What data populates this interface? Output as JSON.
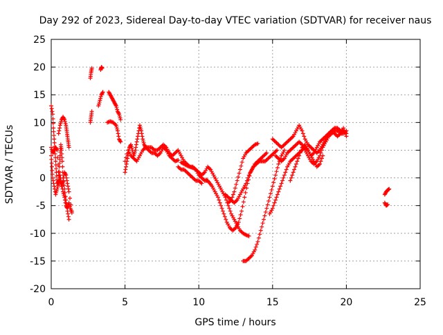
{
  "chart_data": {
    "type": "scatter",
    "title": "Day 292 of 2023, Sidereal Day-to-day VTEC variation (SDTVAR) for receiver naus",
    "xlabel": "GPS time / hours",
    "ylabel": "SDTVAR / TECUs",
    "xlim": [
      0,
      25
    ],
    "ylim": [
      -20,
      25
    ],
    "xticks": [
      "0",
      "5",
      "10",
      "15",
      "20",
      "25"
    ],
    "yticks": [
      "-20",
      "-15",
      "-10",
      "-5",
      "0",
      "5",
      "10",
      "15",
      "20",
      "25"
    ],
    "grid": true,
    "marker": "+",
    "series_color": "#ff0000",
    "segments": [
      [
        [
          0.0,
          13.0
        ],
        [
          0.1,
          11.5
        ],
        [
          0.15,
          9.0
        ],
        [
          0.2,
          7.0
        ],
        [
          0.25,
          5.0
        ],
        [
          0.3,
          3.0
        ],
        [
          0.35,
          1.0
        ],
        [
          0.4,
          -1.0
        ],
        [
          0.5,
          -0.5
        ],
        [
          0.55,
          2.0
        ],
        [
          0.6,
          4.0
        ],
        [
          0.65,
          6.0
        ],
        [
          0.7,
          5.0
        ],
        [
          0.75,
          3.0
        ],
        [
          0.8,
          0.0
        ],
        [
          0.9,
          -2.0
        ],
        [
          1.0,
          -4.0
        ],
        [
          1.1,
          -6.0
        ],
        [
          1.2,
          -7.5
        ]
      ],
      [
        [
          0.0,
          4.0
        ],
        [
          0.05,
          2.0
        ],
        [
          0.1,
          0.0
        ],
        [
          0.2,
          -1.5
        ],
        [
          0.3,
          -3.0
        ],
        [
          0.4,
          -2.0
        ],
        [
          0.5,
          -1.0
        ],
        [
          0.6,
          0.5
        ],
        [
          0.7,
          -1.0
        ],
        [
          0.8,
          -2.5
        ],
        [
          0.9,
          -3.5
        ],
        [
          1.0,
          -5.0
        ],
        [
          1.1,
          -5.5
        ],
        [
          1.2,
          -4.5
        ],
        [
          1.3,
          -5.5
        ],
        [
          1.4,
          -6.3
        ]
      ],
      [
        [
          0.5,
          8.0
        ],
        [
          0.6,
          9.5
        ],
        [
          0.7,
          10.5
        ],
        [
          0.8,
          11.0
        ],
        [
          0.9,
          10.5
        ],
        [
          1.0,
          9.5
        ],
        [
          1.05,
          8.5
        ],
        [
          1.1,
          7.5
        ],
        [
          1.15,
          6.5
        ],
        [
          1.2,
          5.5
        ]
      ],
      [
        [
          0.0,
          5.5
        ],
        [
          0.1,
          4.5
        ],
        [
          0.2,
          5.0
        ],
        [
          0.3,
          5.5
        ],
        [
          0.4,
          5.0
        ],
        [
          0.5,
          1.0
        ],
        [
          0.6,
          -0.5
        ],
        [
          0.7,
          -1.5
        ],
        [
          0.8,
          -0.5
        ],
        [
          0.9,
          1.0
        ],
        [
          1.0,
          0.5
        ],
        [
          1.1,
          -1.0
        ],
        [
          1.2,
          -2.5
        ],
        [
          1.4,
          -6.0
        ]
      ],
      [
        [
          2.65,
          18.0
        ],
        [
          2.7,
          19.0
        ],
        [
          2.75,
          19.8
        ]
      ],
      [
        [
          2.65,
          10.0
        ],
        [
          2.7,
          11.0
        ],
        [
          2.75,
          12.0
        ]
      ],
      [
        [
          3.35,
          19.5
        ],
        [
          3.4,
          20.0
        ],
        [
          3.45,
          19.8
        ]
      ],
      [
        [
          3.2,
          13.0
        ],
        [
          3.3,
          14.0
        ],
        [
          3.4,
          15.0
        ],
        [
          3.5,
          15.5
        ]
      ],
      [
        [
          3.8,
          10.0
        ],
        [
          4.0,
          10.2
        ],
        [
          4.2,
          10.0
        ],
        [
          4.4,
          9.5
        ],
        [
          4.5,
          8.5
        ],
        [
          4.6,
          7.0
        ],
        [
          4.7,
          6.5
        ]
      ],
      [
        [
          3.9,
          15.5
        ],
        [
          4.0,
          15.0
        ],
        [
          4.1,
          14.5
        ],
        [
          4.2,
          14.0
        ],
        [
          4.3,
          13.5
        ],
        [
          4.4,
          13.0
        ],
        [
          4.5,
          12.0
        ],
        [
          4.6,
          11.5
        ],
        [
          4.7,
          10.5
        ]
      ],
      [
        [
          5.0,
          1.0
        ],
        [
          5.1,
          2.5
        ],
        [
          5.2,
          4.0
        ],
        [
          5.3,
          5.5
        ],
        [
          5.4,
          6.0
        ],
        [
          5.5,
          5.0
        ],
        [
          5.6,
          4.0
        ],
        [
          5.7,
          5.0
        ],
        [
          5.8,
          6.5
        ],
        [
          5.9,
          8.0
        ],
        [
          6.0,
          9.5
        ],
        [
          6.1,
          8.5
        ],
        [
          6.2,
          7.0
        ],
        [
          6.3,
          6.0
        ],
        [
          6.4,
          5.5
        ],
        [
          6.6,
          5.0
        ],
        [
          6.8,
          4.5
        ],
        [
          7.0,
          4.5
        ],
        [
          7.2,
          4.0
        ],
        [
          7.4,
          4.5
        ],
        [
          7.6,
          5.5
        ],
        [
          7.8,
          5.0
        ],
        [
          8.0,
          4.0
        ],
        [
          8.2,
          3.5
        ],
        [
          8.4,
          3.0
        ],
        [
          8.6,
          3.2
        ]
      ],
      [
        [
          5.0,
          3.0
        ],
        [
          5.2,
          5.0
        ],
        [
          5.4,
          4.0
        ],
        [
          5.6,
          3.5
        ],
        [
          5.8,
          3.0
        ],
        [
          6.0,
          4.0
        ],
        [
          6.2,
          5.0
        ],
        [
          6.4,
          5.5
        ],
        [
          6.6,
          5.5
        ],
        [
          6.8,
          5.5
        ],
        [
          7.0,
          5.0
        ],
        [
          7.2,
          5.0
        ],
        [
          7.4,
          5.5
        ],
        [
          7.6,
          6.0
        ],
        [
          7.8,
          5.5
        ],
        [
          8.0,
          4.5
        ],
        [
          8.2,
          4.0
        ],
        [
          8.4,
          4.5
        ],
        [
          8.6,
          5.0
        ],
        [
          8.8,
          4.0
        ],
        [
          9.0,
          3.0
        ],
        [
          9.2,
          2.5
        ],
        [
          9.4,
          2.0
        ],
        [
          9.6,
          2.0
        ],
        [
          9.8,
          1.5
        ],
        [
          10.0,
          0.5
        ],
        [
          10.2,
          0.0
        ],
        [
          10.4,
          -0.5
        ],
        [
          10.6,
          -0.5
        ]
      ],
      [
        [
          8.6,
          2.0
        ],
        [
          8.8,
          1.5
        ],
        [
          9.0,
          1.5
        ],
        [
          9.2,
          1.0
        ],
        [
          9.4,
          0.5
        ],
        [
          9.6,
          0.0
        ],
        [
          9.8,
          -0.5
        ],
        [
          10.0,
          -0.5
        ],
        [
          10.2,
          -1.0
        ]
      ],
      [
        [
          8.8,
          2.8
        ],
        [
          9.0,
          2.5
        ],
        [
          9.2,
          2.2
        ],
        [
          9.4,
          2.0
        ],
        [
          9.6,
          1.8
        ],
        [
          9.8,
          1.5
        ],
        [
          10.0,
          1.0
        ],
        [
          10.2,
          0.5
        ],
        [
          10.4,
          1.0
        ],
        [
          10.6,
          2.0
        ],
        [
          10.8,
          1.5
        ],
        [
          11.0,
          0.5
        ],
        [
          11.2,
          -0.5
        ],
        [
          11.4,
          -1.5
        ],
        [
          11.6,
          -2.5
        ],
        [
          11.8,
          -3.5
        ],
        [
          12.0,
          -5.0
        ],
        [
          12.2,
          -6.5
        ],
        [
          12.4,
          -7.5
        ],
        [
          12.6,
          -8.5
        ],
        [
          12.8,
          -9.5
        ],
        [
          13.0,
          -10.0
        ],
        [
          13.2,
          -10.3
        ],
        [
          13.4,
          -10.5
        ]
      ],
      [
        [
          10.5,
          -0.3
        ],
        [
          10.7,
          -0.8
        ],
        [
          10.9,
          -1.5
        ],
        [
          11.1,
          -2.5
        ],
        [
          11.3,
          -3.5
        ],
        [
          11.5,
          -5.0
        ],
        [
          11.7,
          -6.5
        ],
        [
          11.9,
          -8.0
        ],
        [
          12.1,
          -9.0
        ],
        [
          12.3,
          -9.5
        ],
        [
          12.5,
          -9.0
        ],
        [
          12.7,
          -8.0
        ],
        [
          12.9,
          -6.0
        ],
        [
          13.1,
          -3.5
        ],
        [
          13.3,
          -1.0
        ],
        [
          13.5,
          1.0
        ],
        [
          13.7,
          2.0
        ],
        [
          13.9,
          2.5
        ],
        [
          14.1,
          3.0
        ],
        [
          14.3,
          3.0
        ],
        [
          14.5,
          3.0
        ],
        [
          14.7,
          3.5
        ],
        [
          14.9,
          4.0
        ],
        [
          15.1,
          4.5
        ],
        [
          15.3,
          5.0
        ]
      ],
      [
        [
          11.8,
          -3.0
        ],
        [
          12.0,
          -3.5
        ],
        [
          12.2,
          -4.0
        ],
        [
          12.4,
          -4.5
        ],
        [
          12.6,
          -4.0
        ],
        [
          12.8,
          -3.0
        ],
        [
          13.0,
          -2.0
        ],
        [
          13.2,
          -1.0
        ],
        [
          13.4,
          0.5
        ],
        [
          13.6,
          1.5
        ],
        [
          13.8,
          2.5
        ],
        [
          14.0,
          3.0
        ],
        [
          14.2,
          3.5
        ],
        [
          14.4,
          4.0
        ],
        [
          14.6,
          4.5
        ]
      ],
      [
        [
          12.0,
          -4.5
        ],
        [
          12.2,
          -4.0
        ],
        [
          12.4,
          -2.5
        ],
        [
          12.6,
          -0.5
        ],
        [
          12.8,
          1.5
        ],
        [
          13.0,
          3.5
        ],
        [
          13.2,
          4.5
        ],
        [
          13.4,
          5.0
        ],
        [
          13.6,
          5.5
        ],
        [
          13.8,
          6.0
        ],
        [
          14.0,
          6.2
        ]
      ],
      [
        [
          13.0,
          -15.0
        ],
        [
          13.2,
          -15.0
        ],
        [
          13.4,
          -14.5
        ],
        [
          13.6,
          -14.0
        ],
        [
          13.8,
          -13.0
        ],
        [
          14.0,
          -11.5
        ],
        [
          14.2,
          -9.5
        ],
        [
          14.4,
          -7.5
        ],
        [
          14.6,
          -5.5
        ],
        [
          14.8,
          -3.5
        ],
        [
          15.0,
          -1.5
        ],
        [
          15.2,
          0.5
        ],
        [
          15.4,
          2.5
        ],
        [
          15.6,
          4.0
        ],
        [
          15.8,
          5.0
        ]
      ],
      [
        [
          14.8,
          -6.5
        ],
        [
          15.0,
          -5.5
        ],
        [
          15.2,
          -4.0
        ],
        [
          15.4,
          -2.5
        ],
        [
          15.6,
          -1.0
        ],
        [
          15.8,
          0.5
        ],
        [
          16.0,
          2.0
        ],
        [
          16.2,
          3.0
        ],
        [
          16.4,
          3.5
        ],
        [
          16.6,
          4.0
        ],
        [
          16.8,
          4.5
        ],
        [
          17.0,
          5.0
        ],
        [
          17.2,
          5.5
        ],
        [
          17.4,
          5.0
        ],
        [
          17.6,
          4.0
        ],
        [
          17.8,
          3.0
        ],
        [
          18.0,
          2.0
        ],
        [
          18.2,
          2.5
        ],
        [
          18.4,
          4.0
        ]
      ],
      [
        [
          15.0,
          7.0
        ],
        [
          15.2,
          6.5
        ],
        [
          15.4,
          6.0
        ],
        [
          15.6,
          5.5
        ],
        [
          15.8,
          6.0
        ],
        [
          16.0,
          6.5
        ],
        [
          16.2,
          7.0
        ],
        [
          16.4,
          7.5
        ],
        [
          16.6,
          8.5
        ],
        [
          16.8,
          9.5
        ],
        [
          17.0,
          8.5
        ],
        [
          17.2,
          7.0
        ],
        [
          17.4,
          6.0
        ],
        [
          17.6,
          5.5
        ],
        [
          17.8,
          5.0
        ],
        [
          18.0,
          4.5
        ],
        [
          18.2,
          5.0
        ],
        [
          18.4,
          6.0
        ],
        [
          18.6,
          7.0
        ],
        [
          18.8,
          8.0
        ],
        [
          19.0,
          8.5
        ],
        [
          19.2,
          9.0
        ],
        [
          19.4,
          9.0
        ],
        [
          19.6,
          8.5
        ],
        [
          19.8,
          8.5
        ],
        [
          20.0,
          8.0
        ]
      ],
      [
        [
          15.2,
          4.0
        ],
        [
          15.4,
          3.5
        ],
        [
          15.6,
          3.0
        ],
        [
          15.8,
          3.5
        ],
        [
          16.0,
          4.5
        ],
        [
          16.2,
          5.0
        ],
        [
          16.4,
          5.5
        ],
        [
          16.6,
          6.0
        ],
        [
          16.8,
          6.5
        ],
        [
          17.0,
          6.0
        ],
        [
          17.2,
          5.0
        ],
        [
          17.4,
          4.0
        ],
        [
          17.6,
          3.0
        ],
        [
          17.8,
          2.5
        ],
        [
          18.0,
          3.0
        ],
        [
          18.2,
          4.0
        ],
        [
          18.4,
          5.5
        ],
        [
          18.6,
          6.5
        ],
        [
          18.8,
          7.5
        ],
        [
          19.0,
          8.0
        ],
        [
          19.2,
          8.5
        ],
        [
          19.4,
          8.5
        ],
        [
          19.6,
          8.0
        ],
        [
          19.8,
          8.0
        ],
        [
          20.0,
          8.5
        ]
      ],
      [
        [
          16.2,
          -0.5
        ],
        [
          16.4,
          1.0
        ],
        [
          16.6,
          2.5
        ],
        [
          16.8,
          4.0
        ],
        [
          17.0,
          5.5
        ],
        [
          17.2,
          6.0
        ],
        [
          17.4,
          5.0
        ],
        [
          17.6,
          4.0
        ],
        [
          17.8,
          4.5
        ],
        [
          18.0,
          5.5
        ],
        [
          18.2,
          6.5
        ],
        [
          18.4,
          7.0
        ],
        [
          18.6,
          7.5
        ],
        [
          18.8,
          8.0
        ],
        [
          19.0,
          8.5
        ],
        [
          19.2,
          8.0
        ],
        [
          19.4,
          7.5
        ],
        [
          19.6,
          8.0
        ],
        [
          19.8,
          9.0
        ],
        [
          20.0,
          7.5
        ]
      ],
      [
        [
          22.6,
          -4.5
        ],
        [
          22.7,
          -5.0
        ],
        [
          22.8,
          -4.8
        ]
      ],
      [
        [
          22.6,
          -3.0
        ],
        [
          22.7,
          -2.5
        ],
        [
          22.8,
          -2.2
        ],
        [
          22.9,
          -2.0
        ]
      ]
    ]
  }
}
